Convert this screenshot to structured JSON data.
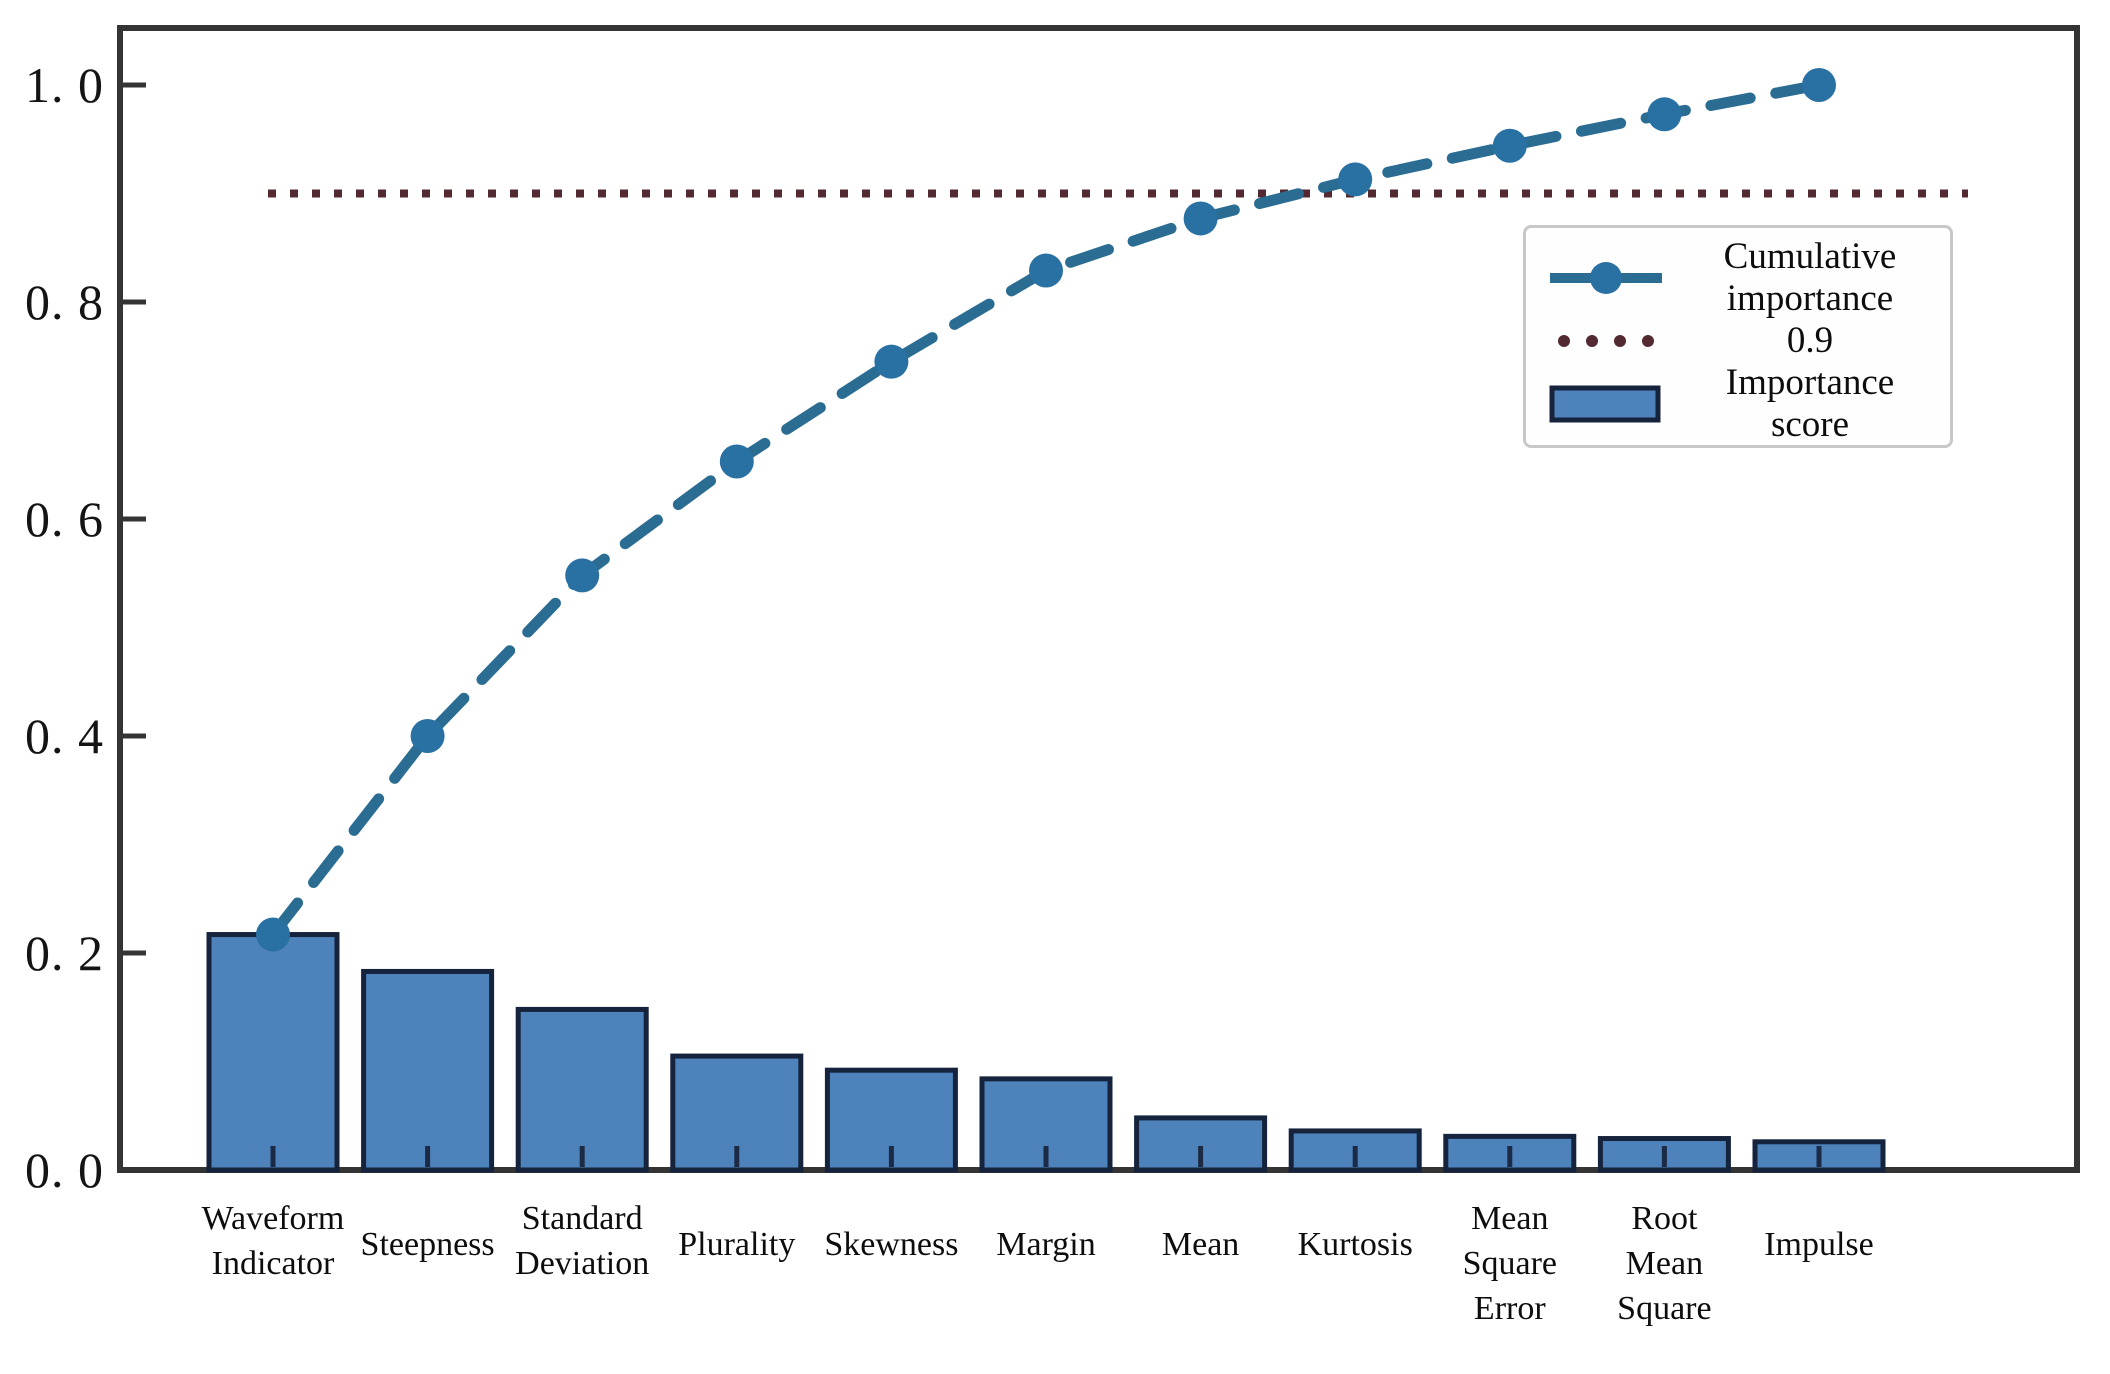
{
  "chart_data": {
    "type": "bar",
    "subtype": "pareto-bar-with-cumulative-line",
    "title": "",
    "xlabel": "",
    "ylabel": "",
    "categories": [
      "Waveform Indicator",
      "Steepness",
      "Standard Deviation",
      "Plurality",
      "Skewness",
      "Margin",
      "Mean",
      "Kurtosis",
      "Mean Square Error",
      "Root Mean Square",
      "Impulse"
    ],
    "category_label_lines": [
      [
        "Waveform",
        "Indicator"
      ],
      [
        "Steepness"
      ],
      [
        "Standard",
        "Deviation"
      ],
      [
        "Plurality"
      ],
      [
        "Skewness"
      ],
      [
        "Margin"
      ],
      [
        "Mean"
      ],
      [
        "Kurtosis"
      ],
      [
        "Mean",
        "Square",
        "Error"
      ],
      [
        "Root",
        "Mean",
        "Square"
      ],
      [
        "Impulse"
      ]
    ],
    "series": [
      {
        "name": "Importance score",
        "type": "bar",
        "values": [
          0.217,
          0.183,
          0.148,
          0.105,
          0.092,
          0.084,
          0.048,
          0.036,
          0.031,
          0.029,
          0.026
        ]
      },
      {
        "name": "Cumulative importance",
        "type": "line-dashed-with-markers",
        "values": [
          0.217,
          0.4,
          0.548,
          0.653,
          0.745,
          0.829,
          0.877,
          0.913,
          0.944,
          0.973,
          1.0
        ]
      },
      {
        "name": "0.9",
        "type": "threshold-dotted-line",
        "value": 0.9
      }
    ],
    "ylim": [
      0,
      1.05
    ],
    "yticks": {
      "values": [
        0,
        0.2,
        0.4,
        0.6,
        0.8,
        1.0
      ],
      "labels": [
        "0. 0",
        "0. 2",
        "0. 4",
        "0. 6",
        "0. 8",
        "1. 0"
      ]
    },
    "grid": false,
    "legend_position": "upper right inside plot"
  },
  "legend": {
    "entries": [
      {
        "swatch": "line-with-marker",
        "lines": [
          "Cumulative",
          "importance"
        ]
      },
      {
        "swatch": "dotted-line",
        "lines": [
          "0.9"
        ]
      },
      {
        "swatch": "bar",
        "lines": [
          "Importance",
          "score"
        ]
      }
    ]
  },
  "colors": {
    "bar_fill": "#4d82bb",
    "bar_edge": "#16233c",
    "line": "#2b6d92",
    "marker": "#2a71a3",
    "threshold": "#532a32",
    "axis": "#343434",
    "x_tick": "#1b2b45",
    "text": "#111111",
    "legend_border": "#c8c8c8",
    "background": "#ffffff"
  }
}
